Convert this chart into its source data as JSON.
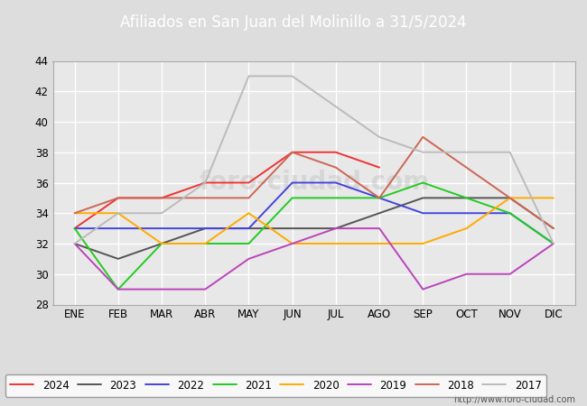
{
  "title": "Afiliados en San Juan del Molinillo a 31/5/2024",
  "header_bg": "#5577cc",
  "months": [
    "ENE",
    "FEB",
    "MAR",
    "ABR",
    "MAY",
    "JUN",
    "JUL",
    "AGO",
    "SEP",
    "OCT",
    "NOV",
    "DIC"
  ],
  "series_order": [
    "2024",
    "2023",
    "2022",
    "2021",
    "2020",
    "2019",
    "2018",
    "2017"
  ],
  "series": {
    "2024": {
      "color": "#ee3333",
      "data": [
        33,
        35,
        35,
        36,
        36,
        38,
        38,
        37,
        null,
        null,
        null,
        null
      ]
    },
    "2023": {
      "color": "#555555",
      "data": [
        32,
        31,
        32,
        33,
        33,
        33,
        33,
        34,
        35,
        35,
        35,
        33
      ]
    },
    "2022": {
      "color": "#4444dd",
      "data": [
        33,
        33,
        33,
        33,
        33,
        36,
        36,
        35,
        34,
        34,
        34,
        32
      ]
    },
    "2021": {
      "color": "#22cc22",
      "data": [
        33,
        29,
        32,
        32,
        32,
        35,
        35,
        35,
        36,
        35,
        34,
        32
      ]
    },
    "2020": {
      "color": "#ffaa00",
      "data": [
        34,
        34,
        32,
        32,
        34,
        32,
        32,
        32,
        32,
        33,
        35,
        35
      ]
    },
    "2019": {
      "color": "#bb44bb",
      "data": [
        32,
        29,
        29,
        29,
        31,
        32,
        33,
        33,
        29,
        30,
        30,
        32
      ]
    },
    "2018": {
      "color": "#cc6655",
      "data": [
        34,
        35,
        35,
        35,
        35,
        38,
        37,
        35,
        39,
        37,
        35,
        33
      ]
    },
    "2017": {
      "color": "#bbbbbb",
      "data": [
        32,
        34,
        34,
        36,
        43,
        43,
        41,
        39,
        38,
        38,
        38,
        32
      ]
    }
  },
  "ylim": [
    28,
    44
  ],
  "yticks": [
    28,
    30,
    32,
    34,
    36,
    38,
    40,
    42,
    44
  ],
  "bg_color": "#dddddd",
  "plot_bg": "#e8e8e8",
  "grid_color": "#ffffff",
  "footer_text": "http://www.foro-ciudad.com",
  "watermark": "foro-ciudad.com"
}
